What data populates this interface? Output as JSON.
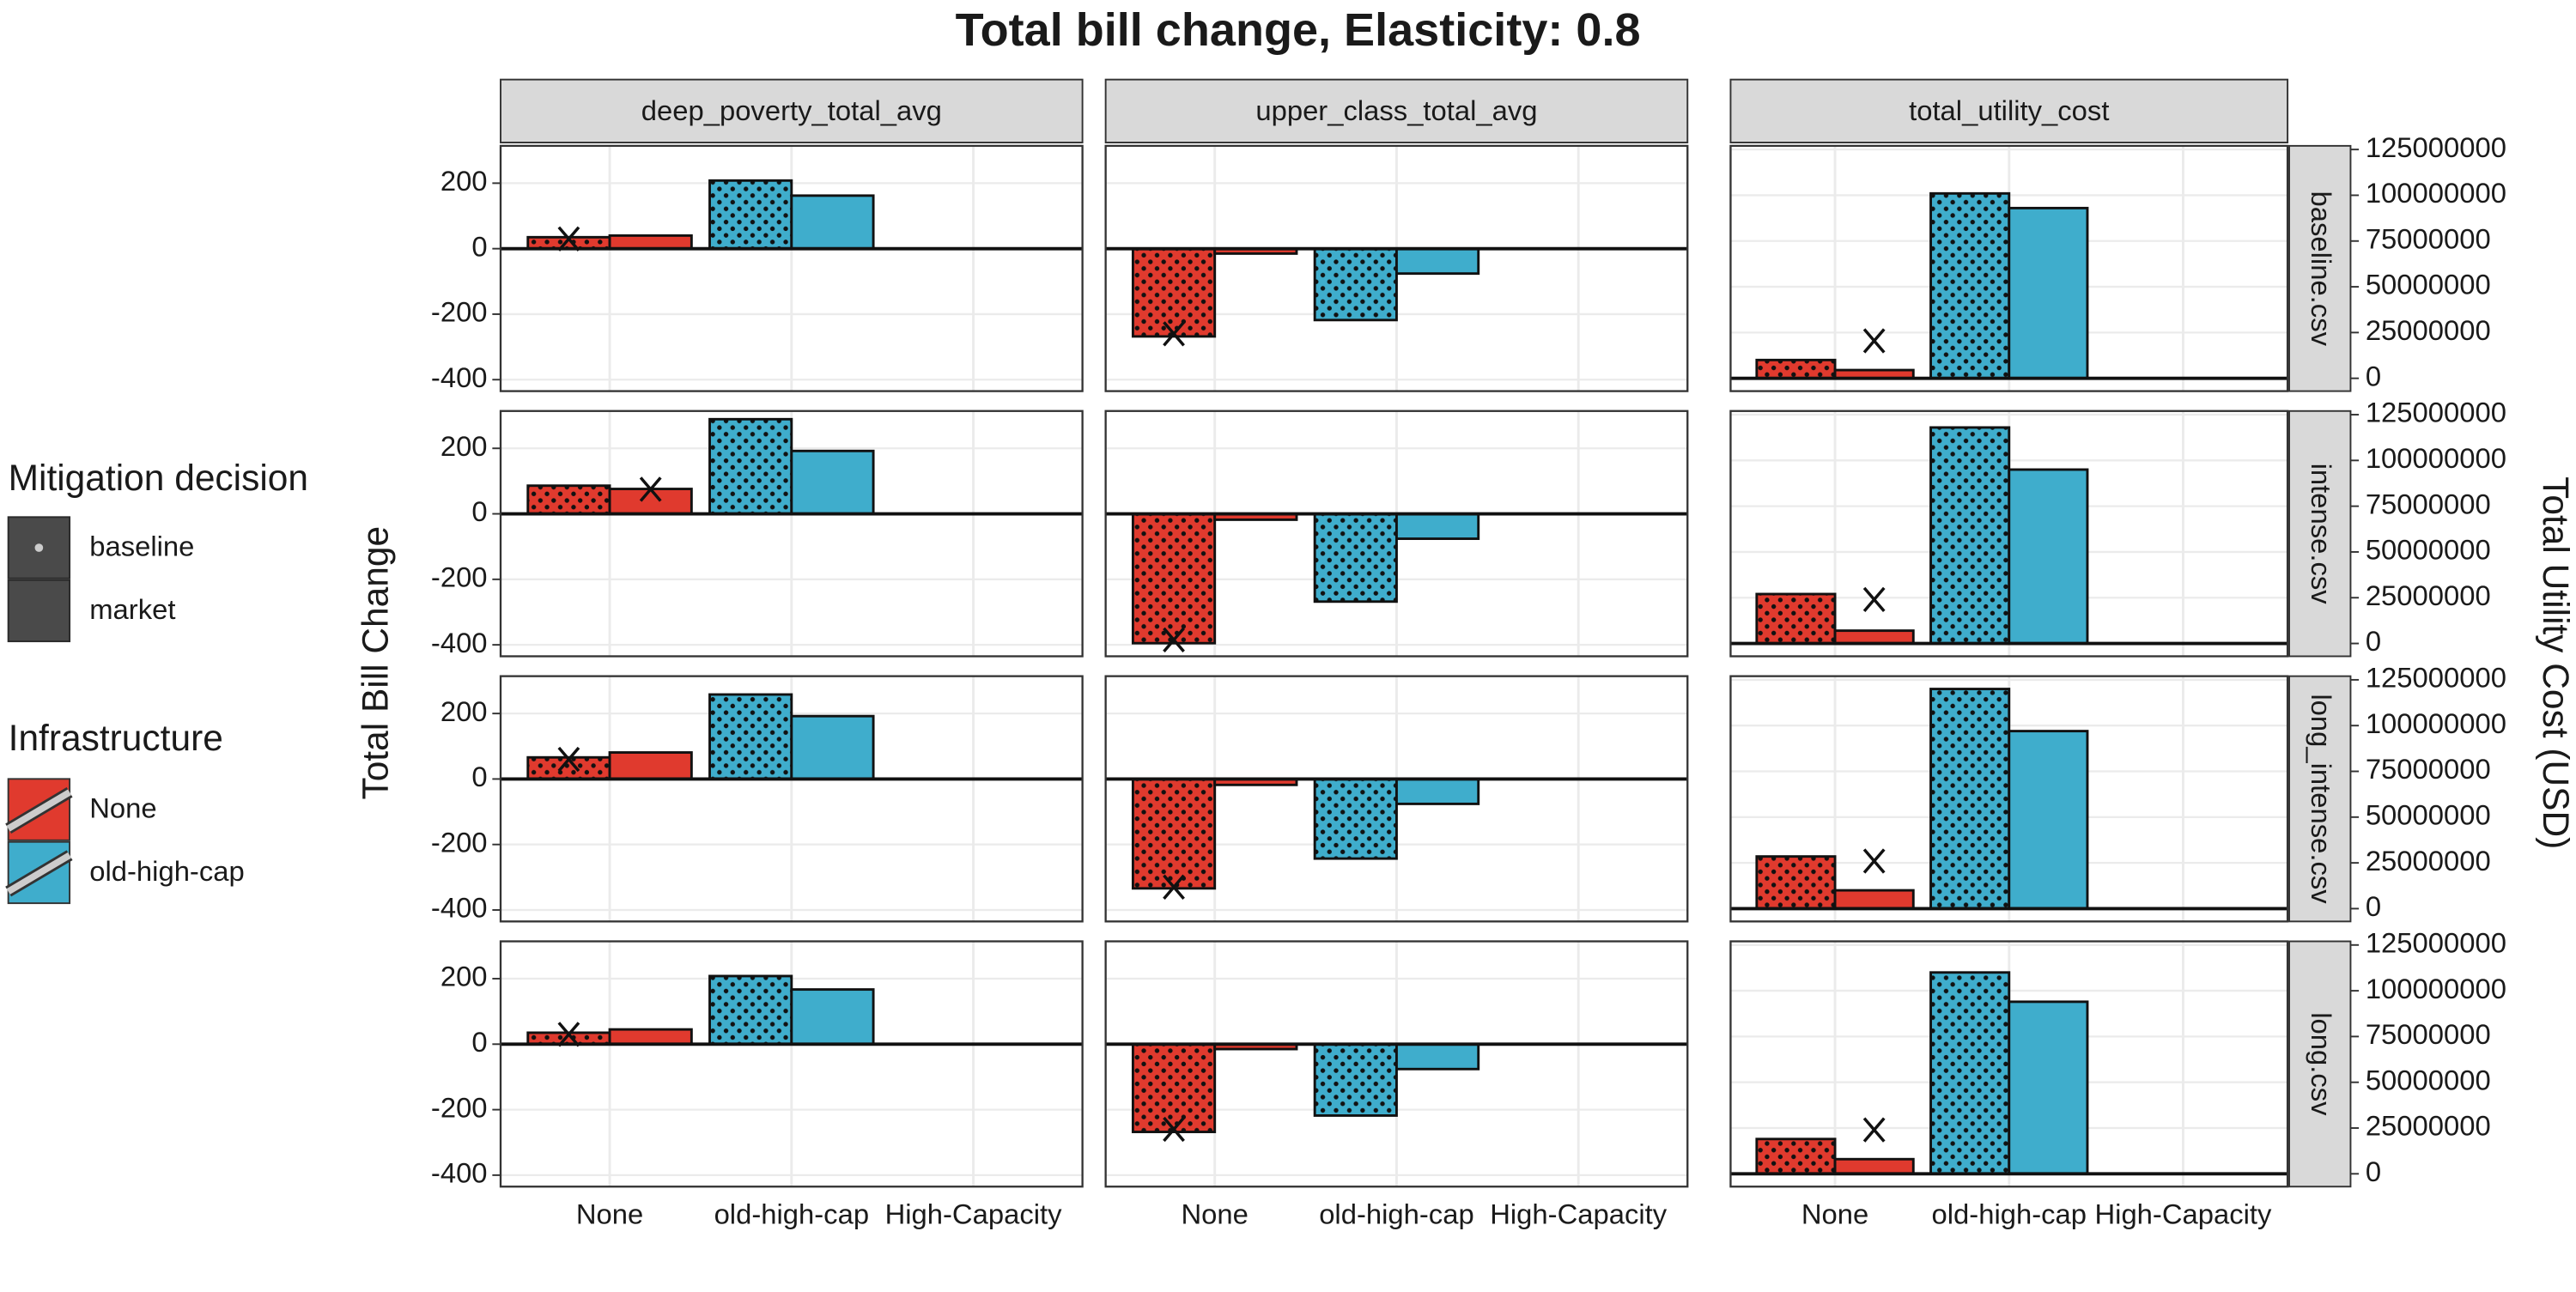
{
  "chart_data": {
    "type": "bar",
    "title": "Total bill change, Elasticity: 0.8",
    "y_label": "Total Bill Change",
    "y2_label": "Total Utility Cost (USD)",
    "categories": [
      "None",
      "old-high-cap",
      "High-Capacity"
    ],
    "columns": [
      "deep_poverty_total_avg",
      "upper_class_total_avg",
      "total_utility_cost"
    ],
    "rows": [
      "baseline.csv",
      "intense.csv",
      "long_intense.csv",
      "long.csv"
    ],
    "mitigation_title": "Mitigation decision",
    "mitigation": [
      "baseline",
      "market"
    ],
    "infrastructure_title": "Infrastructure",
    "infrastructure": [
      {
        "name": "None",
        "color": "#e03a2e"
      },
      {
        "name": "old-high-cap",
        "color": "#3fadcc"
      }
    ],
    "ylim": [
      -435,
      314
    ],
    "yticks": [
      -400,
      -200,
      0,
      200
    ],
    "y2lim": [
      -7000000,
      127000000
    ],
    "y2ticks": [
      0,
      25000000,
      50000000,
      75000000,
      100000000,
      125000000
    ],
    "grid": true,
    "panels": [
      [
        {
          "values": [
            [
              35,
              40
            ],
            [
              208,
              162
            ],
            [
              null,
              null
            ]
          ],
          "marker": {
            "category": "None",
            "mitigation": "baseline",
            "value": 30
          }
        },
        {
          "values": [
            [
              -268,
              -15
            ],
            [
              -218,
              -76
            ],
            [
              null,
              null
            ]
          ],
          "marker": {
            "category": "None",
            "mitigation": "baseline",
            "value": -260
          }
        },
        {
          "values": [
            [
              10000000,
              4500000
            ],
            [
              101000000,
              93000000
            ],
            [
              null,
              null
            ]
          ],
          "marker": {
            "category": "None",
            "mitigation": "market",
            "value": 20500000
          }
        }
      ],
      [
        {
          "values": [
            [
              86,
              76
            ],
            [
              289,
              192
            ],
            [
              null,
              null
            ]
          ],
          "marker": {
            "category": "None",
            "mitigation": "market",
            "value": 75
          }
        },
        {
          "values": [
            [
              -395,
              -18
            ],
            [
              -268,
              -76
            ],
            [
              null,
              null
            ]
          ],
          "marker": {
            "category": "None",
            "mitigation": "baseline",
            "value": -385
          }
        },
        {
          "values": [
            [
              27000000,
              7000000
            ],
            [
              118000000,
              95000000
            ],
            [
              null,
              null
            ]
          ],
          "marker": {
            "category": "None",
            "mitigation": "market",
            "value": 24000000
          }
        }
      ],
      [
        {
          "values": [
            [
              66,
              81
            ],
            [
              258,
              192
            ],
            [
              null,
              null
            ]
          ],
          "marker": {
            "category": "None",
            "mitigation": "baseline",
            "value": 60
          }
        },
        {
          "values": [
            [
              -334,
              -18
            ],
            [
              -243,
              -76
            ],
            [
              null,
              null
            ]
          ],
          "marker": {
            "category": "None",
            "mitigation": "baseline",
            "value": -330
          }
        },
        {
          "values": [
            [
              28500000,
              10000000
            ],
            [
              120000000,
              97000000
            ],
            [
              null,
              null
            ]
          ],
          "marker": {
            "category": "None",
            "mitigation": "market",
            "value": 26000000
          }
        }
      ],
      [
        {
          "values": [
            [
              35,
              45
            ],
            [
              208,
              167
            ],
            [
              null,
              null
            ]
          ],
          "marker": {
            "category": "None",
            "mitigation": "baseline",
            "value": 30
          }
        },
        {
          "values": [
            [
              -268,
              -15
            ],
            [
              -218,
              -76
            ],
            [
              null,
              null
            ]
          ],
          "marker": {
            "category": "None",
            "mitigation": "baseline",
            "value": -260
          }
        },
        {
          "values": [
            [
              19000000,
              8000000
            ],
            [
              110000000,
              94000000
            ],
            [
              null,
              null
            ]
          ],
          "marker": {
            "category": "None",
            "mitigation": "market",
            "value": 24000000
          }
        }
      ]
    ]
  }
}
